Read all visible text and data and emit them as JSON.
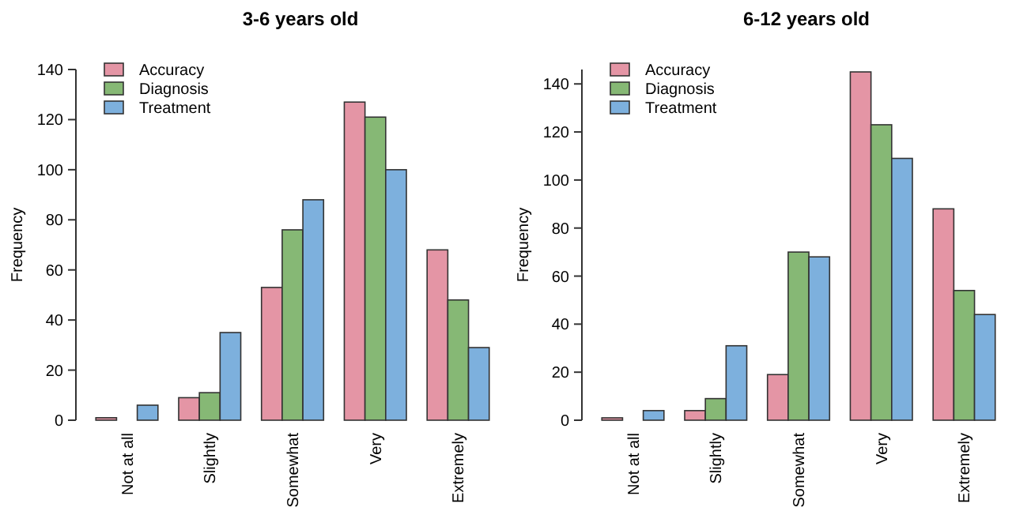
{
  "chart_data": [
    {
      "type": "bar",
      "title": "3-6 years old",
      "ylabel": "Frequency",
      "categories": [
        "Not at all",
        "Slightly",
        "Somewhat",
        "Very",
        "Extremely"
      ],
      "series": [
        {
          "name": "Accuracy",
          "color": "#e495a5",
          "values": [
            1,
            9,
            53,
            127,
            68
          ]
        },
        {
          "name": "Diagnosis",
          "color": "#86b875",
          "values": [
            0,
            11,
            76,
            121,
            48
          ]
        },
        {
          "name": "Treatment",
          "color": "#7db0dd",
          "values": [
            6,
            35,
            88,
            100,
            29
          ]
        }
      ],
      "ylim": [
        0,
        140
      ],
      "yticks": [
        0,
        20,
        40,
        60,
        80,
        100,
        120,
        140
      ],
      "legend": "top left",
      "grid": false
    },
    {
      "type": "bar",
      "title": "6-12 years old",
      "ylabel": "Frequency",
      "categories": [
        "Not at all",
        "Slightly",
        "Somewhat",
        "Very",
        "Extremely"
      ],
      "series": [
        {
          "name": "Accuracy",
          "color": "#e495a5",
          "values": [
            1,
            4,
            19,
            145,
            88
          ]
        },
        {
          "name": "Diagnosis",
          "color": "#86b875",
          "values": [
            0,
            9,
            70,
            123,
            54
          ]
        },
        {
          "name": "Treatment",
          "color": "#7db0dd",
          "values": [
            4,
            31,
            68,
            109,
            44
          ]
        }
      ],
      "ylim": [
        0,
        146
      ],
      "yticks": [
        0,
        20,
        40,
        60,
        80,
        100,
        120,
        140
      ],
      "legend": "top left",
      "grid": false
    }
  ]
}
